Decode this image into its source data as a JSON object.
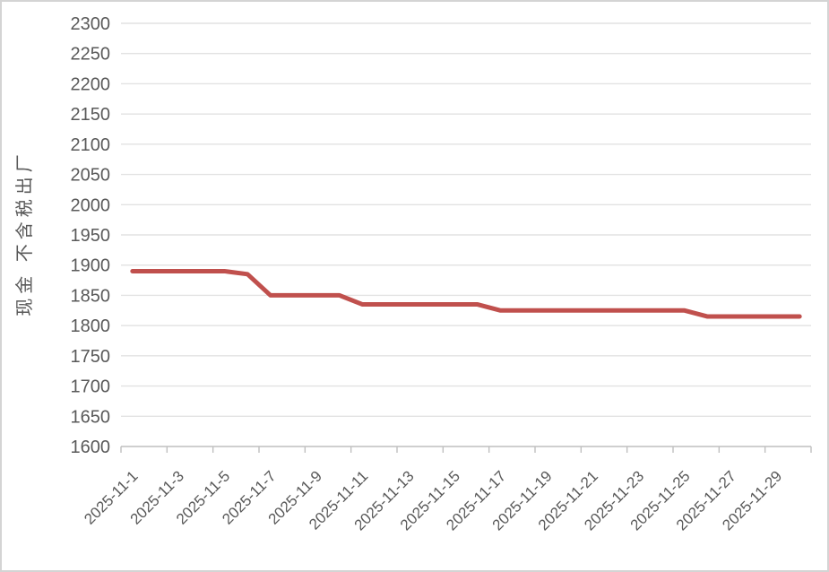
{
  "chart_data": {
    "type": "line",
    "title": "",
    "xlabel": "",
    "ylabel": "现金 不含税出厂",
    "ylim": [
      1600,
      2300
    ],
    "ytick_step": 50,
    "y_tick_labels": [
      "1600",
      "1650",
      "1700",
      "1750",
      "1800",
      "1850",
      "1900",
      "1950",
      "2000",
      "2050",
      "2100",
      "2150",
      "2200",
      "2250",
      "2300"
    ],
    "categories": [
      "2025-11-1",
      "2025-11-2",
      "2025-11-3",
      "2025-11-4",
      "2025-11-5",
      "2025-11-6",
      "2025-11-7",
      "2025-11-8",
      "2025-11-9",
      "2025-11-10",
      "2025-11-11",
      "2025-11-12",
      "2025-11-13",
      "2025-11-14",
      "2025-11-15",
      "2025-11-16",
      "2025-11-17",
      "2025-11-18",
      "2025-11-19",
      "2025-11-20",
      "2025-11-21",
      "2025-11-22",
      "2025-11-23",
      "2025-11-24",
      "2025-11-25",
      "2025-11-26",
      "2025-11-27",
      "2025-11-28",
      "2025-11-29",
      "2025-11-30"
    ],
    "x_tick_labels": [
      "2025-11-1",
      "2025-11-3",
      "2025-11-5",
      "2025-11-7",
      "2025-11-9",
      "2025-11-11",
      "2025-11-13",
      "2025-11-15",
      "2025-11-17",
      "2025-11-19",
      "2025-11-21",
      "2025-11-23",
      "2025-11-25",
      "2025-11-27",
      "2025-11-29"
    ],
    "x_label_interval": 2,
    "x_label_rotation_deg": 45,
    "grid": "horizontal",
    "legend": "none",
    "series": [
      {
        "name": "现金 不含税出厂",
        "values": [
          1890,
          1890,
          1890,
          1890,
          1890,
          1885,
          1850,
          1850,
          1850,
          1850,
          1835,
          1835,
          1835,
          1835,
          1835,
          1835,
          1825,
          1825,
          1825,
          1825,
          1825,
          1825,
          1825,
          1825,
          1825,
          1815,
          1815,
          1815,
          1815,
          1815
        ]
      }
    ],
    "colors": {
      "line": "#c0504d",
      "gridline": "#e2e2e2",
      "axis": "#bfbfbf",
      "tick_text": "#595959",
      "axis_title_text": "#595959",
      "background": "#ffffff"
    }
  }
}
